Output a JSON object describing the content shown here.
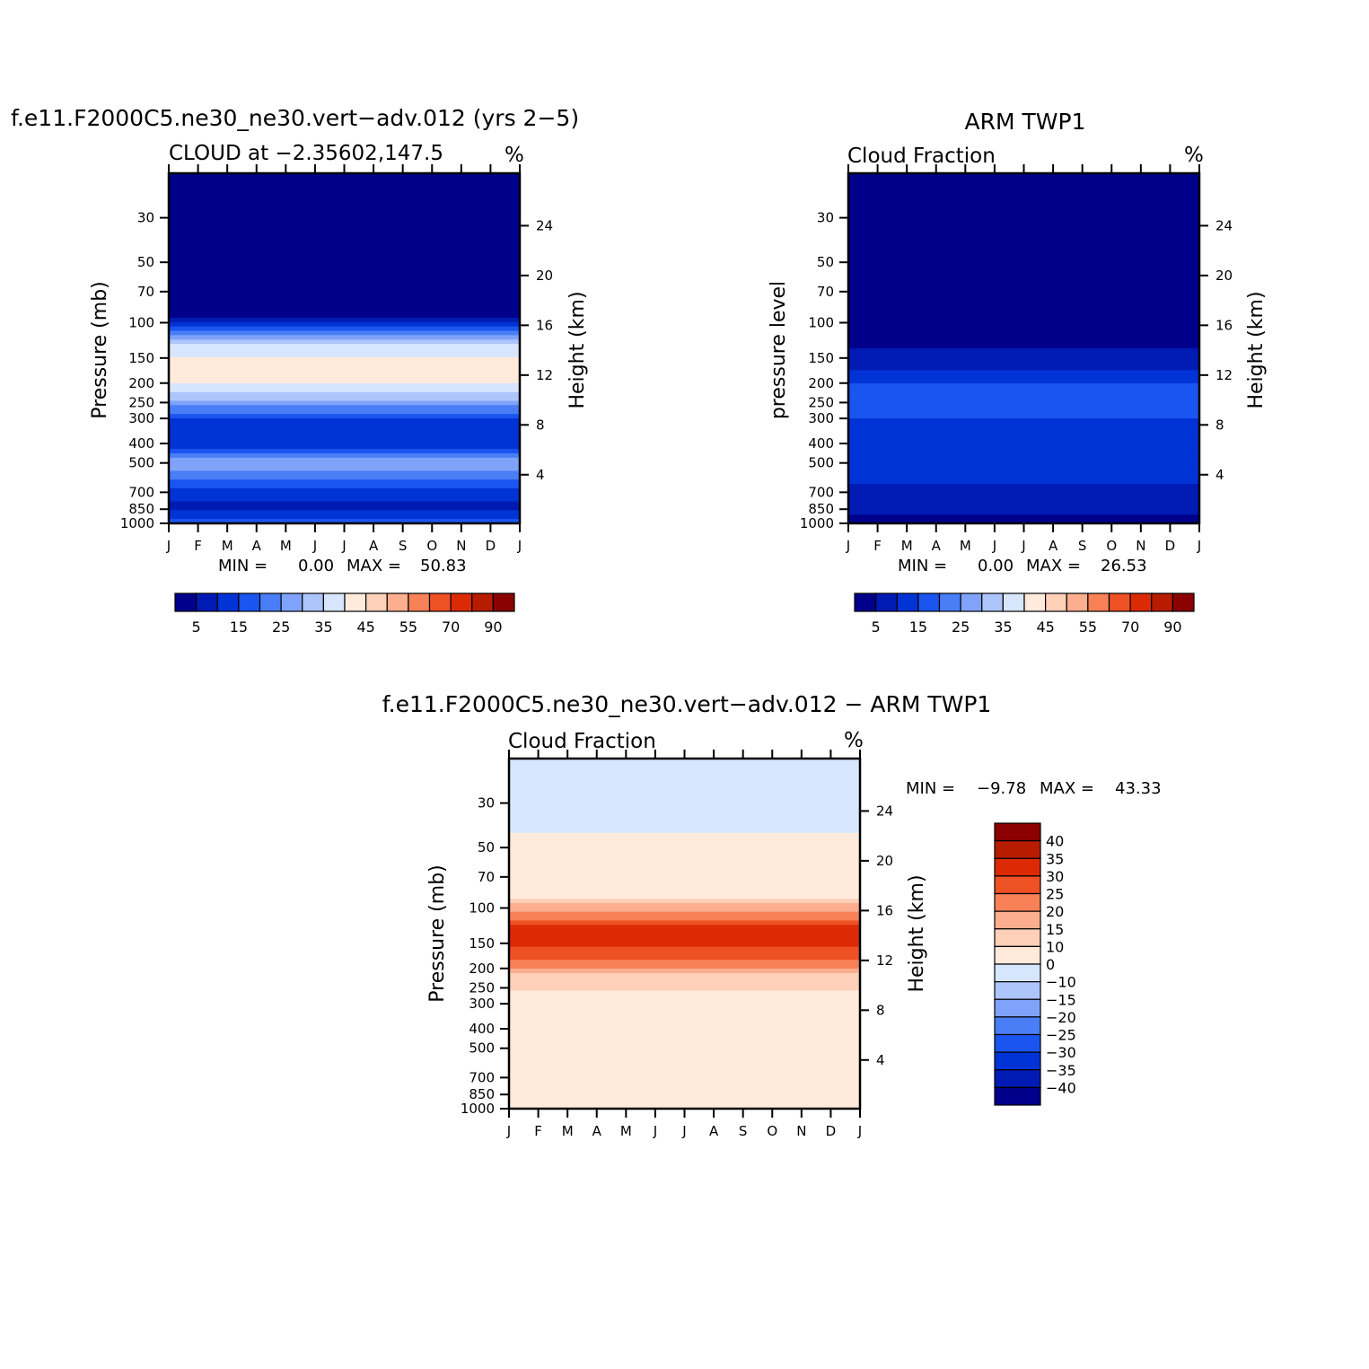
{
  "chart_data": [
    {
      "type": "heatmap",
      "title": "f.e11.F2000C5.ne30_ne30.vert−adv.012 (yrs 2−5)",
      "subtitle": "CLOUD at −2.35602,147.5",
      "units": "%",
      "ylabel": "Pressure (mb)",
      "y2label": "Height (km)",
      "x_ticks": [
        "J",
        "F",
        "M",
        "A",
        "M",
        "J",
        "J",
        "A",
        "S",
        "O",
        "N",
        "D",
        "J"
      ],
      "y_ticks": [
        30,
        50,
        70,
        100,
        150,
        200,
        250,
        300,
        400,
        500,
        700,
        850,
        1000
      ],
      "y2_ticks": [
        24,
        20,
        16,
        12,
        8,
        4
      ],
      "stats": {
        "min_label": "MIN =",
        "min": "0.00",
        "max_label": "MAX =",
        "max": "50.83"
      },
      "colorbar_labels": [
        "5",
        "15",
        "25",
        "35",
        "45",
        "55",
        "70",
        "90"
      ],
      "profile_levels": [
        {
          "p": 30,
          "v": 0
        },
        {
          "p": 60,
          "v": 0
        },
        {
          "p": 90,
          "v": 3
        },
        {
          "p": 110,
          "v": 18
        },
        {
          "p": 130,
          "v": 35
        },
        {
          "p": 160,
          "v": 44
        },
        {
          "p": 200,
          "v": 40
        },
        {
          "p": 250,
          "v": 28
        },
        {
          "p": 300,
          "v": 15
        },
        {
          "p": 400,
          "v": 10
        },
        {
          "p": 500,
          "v": 30
        },
        {
          "p": 600,
          "v": 22
        },
        {
          "p": 700,
          "v": 12
        },
        {
          "p": 850,
          "v": 8
        },
        {
          "p": 1000,
          "v": 18
        }
      ]
    },
    {
      "type": "heatmap",
      "title": "ARM TWP1",
      "subtitle": "Cloud Fraction",
      "units": "%",
      "ylabel": "pressure level",
      "y2label": "Height (km)",
      "x_ticks": [
        "J",
        "F",
        "M",
        "A",
        "M",
        "J",
        "J",
        "A",
        "S",
        "O",
        "N",
        "D",
        "J"
      ],
      "y_ticks": [
        30,
        50,
        70,
        100,
        150,
        200,
        250,
        300,
        400,
        500,
        700,
        850,
        1000
      ],
      "y2_ticks": [
        24,
        20,
        16,
        12,
        8,
        4
      ],
      "stats": {
        "min_label": "MIN =",
        "min": "0.00",
        "max_label": "MAX =",
        "max": "26.53"
      },
      "colorbar_labels": [
        "5",
        "15",
        "25",
        "35",
        "45",
        "55",
        "70",
        "90"
      ],
      "profile_levels": [
        {
          "p": 30,
          "v": 0
        },
        {
          "p": 100,
          "v": 0
        },
        {
          "p": 130,
          "v": 4
        },
        {
          "p": 170,
          "v": 9
        },
        {
          "p": 220,
          "v": 18
        },
        {
          "p": 300,
          "v": 15
        },
        {
          "p": 400,
          "v": 12
        },
        {
          "p": 500,
          "v": 12
        },
        {
          "p": 700,
          "v": 9
        },
        {
          "p": 850,
          "v": 7
        },
        {
          "p": 1000,
          "v": 3
        }
      ]
    },
    {
      "type": "heatmap",
      "title": "f.e11.F2000C5.ne30_ne30.vert−adv.012 − ARM TWP1",
      "subtitle": "Cloud Fraction",
      "units": "%",
      "ylabel": "Pressure (mb)",
      "y2label": "Height (km)",
      "x_ticks": [
        "J",
        "F",
        "M",
        "A",
        "M",
        "J",
        "J",
        "A",
        "S",
        "O",
        "N",
        "D",
        "J"
      ],
      "y_ticks": [
        30,
        50,
        70,
        100,
        150,
        200,
        250,
        300,
        400,
        500,
        700,
        850,
        1000
      ],
      "y2_ticks": [
        24,
        20,
        16,
        12,
        8,
        4
      ],
      "stats": {
        "min_label": "MIN =",
        "min": "−9.78",
        "max_label": "MAX =",
        "max": "43.33"
      },
      "colorbar_labels": [
        "40",
        "35",
        "30",
        "25",
        "20",
        "15",
        "10",
        "0",
        "−10",
        "−15",
        "−20",
        "−25",
        "−30",
        "−35",
        "−40"
      ],
      "profile_levels": [
        {
          "p": 30,
          "v": -2
        },
        {
          "p": 60,
          "v": 2
        },
        {
          "p": 85,
          "v": 5
        },
        {
          "p": 100,
          "v": 18
        },
        {
          "p": 130,
          "v": 33
        },
        {
          "p": 170,
          "v": 28
        },
        {
          "p": 220,
          "v": 14
        },
        {
          "p": 300,
          "v": 5
        },
        {
          "p": 400,
          "v": 5
        },
        {
          "p": 500,
          "v": 8
        },
        {
          "p": 600,
          "v": 5
        },
        {
          "p": 800,
          "v": 3
        },
        {
          "p": 1000,
          "v": 5
        }
      ]
    }
  ],
  "palettes": {
    "full_range": [
      "#00008b",
      "#001bb3",
      "#0033d6",
      "#1a55f0",
      "#4a7ef7",
      "#7fa2fa",
      "#adc5fb",
      "#d7e6fd",
      "#ffeadb",
      "#fed0b8",
      "#fcae8e",
      "#f88158",
      "#ee5124",
      "#dc2a06",
      "#b71c00",
      "#8b0000"
    ],
    "diff_top_to_bottom": [
      "#8b0000",
      "#b71c00",
      "#dc2a06",
      "#ee5124",
      "#f88158",
      "#fcae8e",
      "#fed0b8",
      "#ffeadb",
      "#d7e6fd",
      "#adc5fb",
      "#7fa2fa",
      "#4a7ef7",
      "#1a55f0",
      "#0033d6",
      "#001bb3",
      "#00008b"
    ]
  }
}
